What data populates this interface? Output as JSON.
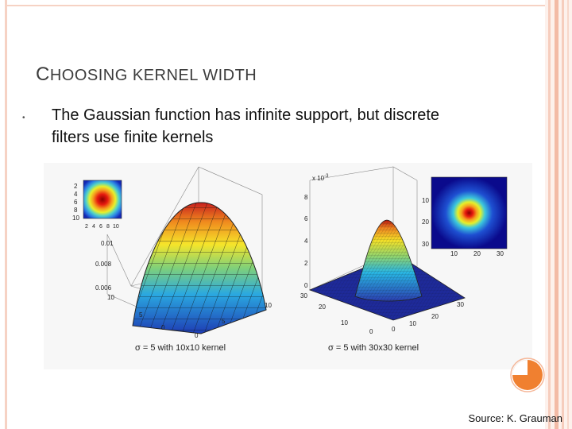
{
  "slide": {
    "title_first": "C",
    "title_rest": "HOOSING KERNEL WIDTH",
    "bullet": "The Gaussian function has infinite support, but discrete filters use finite kernels",
    "source": "Source: K. Grauman"
  },
  "figure_left": {
    "inset_yticks": [
      "2",
      "4",
      "6",
      "8",
      "10"
    ],
    "inset_xticks": [
      "2",
      "4",
      "6",
      "8",
      "10"
    ],
    "zticks": [
      "0.01",
      "0.008",
      "0.006"
    ],
    "xticks": [
      "10",
      "5",
      "0"
    ],
    "yticks": [
      "10",
      "5",
      "0"
    ],
    "caption": "σ = 5 with 10x10 kernel"
  },
  "figure_right": {
    "exponent": "x 10",
    "exponent_power": "-3",
    "zticks": [
      "8",
      "6",
      "4",
      "2",
      "0"
    ],
    "xticks": [
      "30",
      "20",
      "10",
      "0"
    ],
    "yticks": [
      "30",
      "20",
      "10",
      "0"
    ],
    "inset_yticks": [
      "10",
      "20",
      "30"
    ],
    "inset_xticks": [
      "10",
      "20",
      "30"
    ],
    "caption": "σ = 5 with 30x30 kernel"
  },
  "colors": {
    "frame": "#f6d2c4",
    "accent_orange": "#f08030",
    "surface_peak": "#c81e1e",
    "surface_base": "#1e3cb4"
  }
}
